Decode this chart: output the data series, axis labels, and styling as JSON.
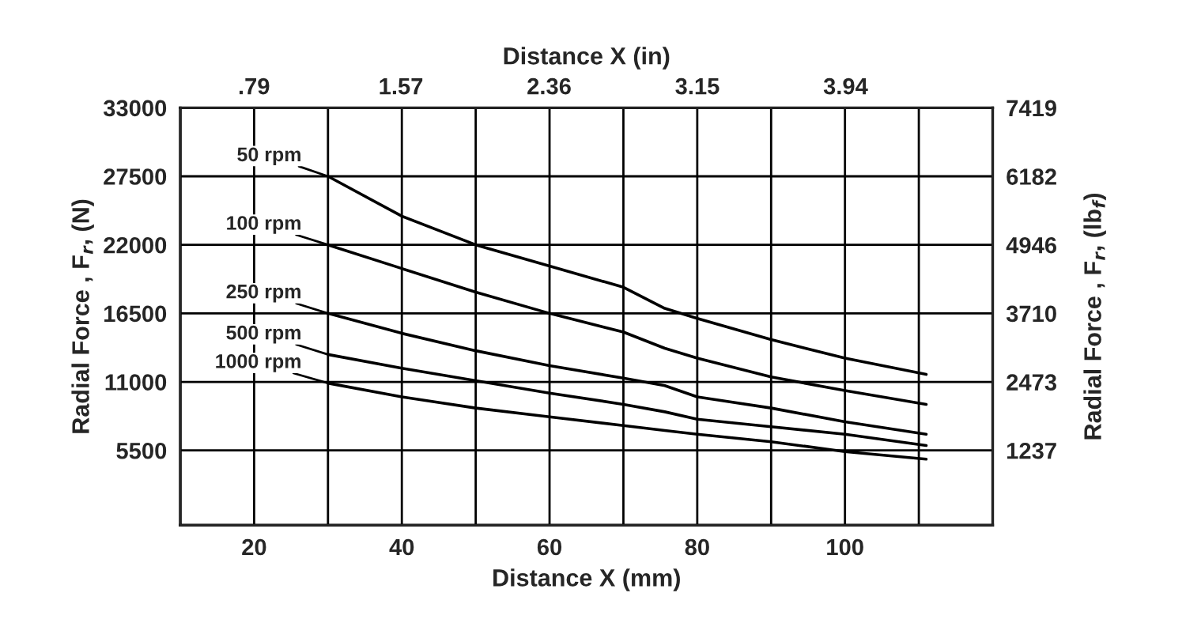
{
  "chart_data": {
    "type": "line",
    "xlabel": "Distance X (mm)",
    "x2label": "Distance X (in)",
    "ylabel": "Radial Force , F$_{r}$, (N)",
    "y2label": "Radial Force , F$_{r}$, (lb$_{f}$)",
    "xlim": [
      10,
      120
    ],
    "xticks": [
      {
        "value": 10,
        "label": null
      },
      20,
      {
        "value": 30,
        "label": null
      },
      40,
      {
        "value": 50,
        "label": null
      },
      60,
      {
        "value": 70,
        "label": null
      },
      80,
      {
        "value": 90,
        "label": null
      },
      100,
      {
        "value": 110,
        "label": null
      }
    ],
    "x2lim": [
      0.394,
      4.724
    ],
    "x2ticks": [
      {
        "value": 0.787,
        "label": ".79"
      },
      1.57,
      2.36,
      3.15,
      3.94
    ],
    "ylim": [
      -500,
      33000
    ],
    "yticks": [
      5500,
      11000,
      16500,
      22000,
      27500,
      33000
    ],
    "y2lim": [
      -112,
      7419
    ],
    "y2ticks": [
      1237,
      2473,
      3710,
      4946,
      6182,
      7419
    ],
    "grid": true,
    "legend": false,
    "marker": "none",
    "line_style": "solid",
    "x": [
      30,
      40,
      50,
      60,
      70,
      75.6,
      80,
      90,
      100,
      111
    ],
    "series": [
      {
        "name": "50 rpm",
        "color": "#000000",
        "values": [
          27500,
          24300,
          22000,
          20300,
          18600,
          16900,
          16100,
          14400,
          12900,
          11600
        ]
      },
      {
        "name": "100 rpm",
        "color": "#000000",
        "values": [
          22000,
          20100,
          18200,
          16500,
          15000,
          13700,
          12900,
          11400,
          10300,
          9200
        ]
      },
      {
        "name": "250 rpm",
        "color": "#000000",
        "values": [
          16500,
          14900,
          13500,
          12300,
          11300,
          10700,
          9800,
          8900,
          7800,
          6800
        ]
      },
      {
        "name": "500 rpm",
        "color": "#000000",
        "values": [
          13200,
          12100,
          11100,
          10100,
          9200,
          8600,
          8000,
          7400,
          6800,
          5900
        ]
      },
      {
        "name": "1000 rpm",
        "color": "#000000",
        "values": [
          10900,
          9800,
          8900,
          8200,
          7500,
          7100,
          6800,
          6200,
          5400,
          4800
        ]
      }
    ]
  }
}
